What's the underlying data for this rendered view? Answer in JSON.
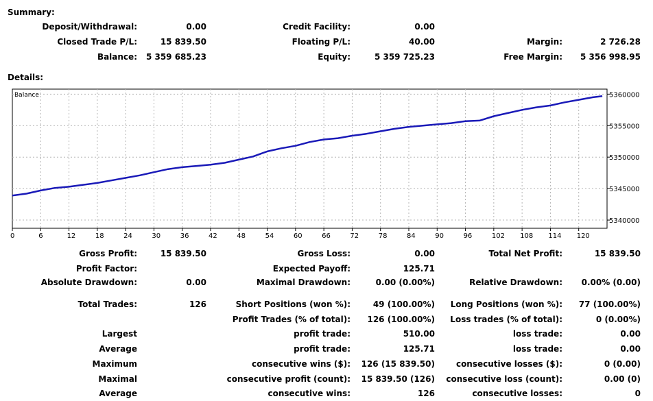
{
  "summary": {
    "heading": "Summary:",
    "deposit_label": "Deposit/Withdrawal:",
    "deposit_value": "0.00",
    "credit_label": "Credit Facility:",
    "credit_value": "0.00",
    "closed_pl_label": "Closed Trade P/L:",
    "closed_pl_value": "15 839.50",
    "floating_pl_label": "Floating P/L:",
    "floating_pl_value": "40.00",
    "margin_label": "Margin:",
    "margin_value": "2 726.28",
    "balance_label": "Balance:",
    "balance_value": "5 359 685.23",
    "equity_label": "Equity:",
    "equity_value": "5 359 725.23",
    "free_margin_label": "Free Margin:",
    "free_margin_value": "5 356 998.95"
  },
  "details": {
    "heading": "Details:",
    "rows": [
      [
        "Gross Profit:",
        "15 839.50",
        "Gross Loss:",
        "0.00",
        "Total Net Profit:",
        "15 839.50"
      ],
      [
        "Profit Factor:",
        "",
        "Expected Payoff:",
        "125.71",
        "",
        ""
      ],
      [
        "Absolute Drawdown:",
        "0.00",
        "Maximal Drawdown:",
        "0.00 (0.00%)",
        "Relative Drawdown:",
        "0.00% (0.00)"
      ],
      [
        "Total Trades:",
        "126",
        "Short Positions (won %):",
        "49 (100.00%)",
        "Long Positions (won %):",
        "77 (100.00%)"
      ],
      [
        "",
        "",
        "Profit Trades (% of total):",
        "126 (100.00%)",
        "Loss trades (% of total):",
        "0 (0.00%)"
      ],
      [
        "Largest",
        "",
        "profit trade:",
        "510.00",
        "loss trade:",
        "0.00"
      ],
      [
        "Average",
        "",
        "profit trade:",
        "125.71",
        "loss trade:",
        "0.00"
      ],
      [
        "Maximum",
        "",
        "consecutive wins ($):",
        "126 (15 839.50)",
        "consecutive losses ($):",
        "0 (0.00)"
      ],
      [
        "Maximal",
        "",
        "consecutive profit (count):",
        "15 839.50 (126)",
        "consecutive loss (count):",
        "0.00 (0)"
      ],
      [
        "Average",
        "",
        "consecutive wins:",
        "126",
        "consecutive losses:",
        "0"
      ]
    ]
  },
  "chart_data": {
    "type": "line",
    "series": [
      {
        "name": "Balance",
        "x": [
          0,
          3,
          6,
          9,
          12,
          15,
          18,
          21,
          24,
          27,
          30,
          33,
          36,
          39,
          42,
          45,
          48,
          51,
          54,
          57,
          60,
          63,
          66,
          69,
          72,
          75,
          78,
          81,
          84,
          87,
          90,
          93,
          96,
          99,
          102,
          105,
          108,
          111,
          114,
          117,
          120,
          123,
          125
        ],
        "values": [
          5343900,
          5344200,
          5344700,
          5345100,
          5345300,
          5345600,
          5345900,
          5346300,
          5346700,
          5347100,
          5347600,
          5348100,
          5348400,
          5348600,
          5348800,
          5349100,
          5349600,
          5350100,
          5350900,
          5351400,
          5351800,
          5352400,
          5352800,
          5353000,
          5353400,
          5353700,
          5354100,
          5354500,
          5354800,
          5355000,
          5355200,
          5355400,
          5355700,
          5355800,
          5356500,
          5357000,
          5357500,
          5357900,
          5358200,
          5358700,
          5359100,
          5359500,
          5359685
        ]
      }
    ],
    "xticks": [
      0,
      6,
      12,
      18,
      24,
      30,
      36,
      42,
      48,
      54,
      60,
      66,
      72,
      78,
      84,
      90,
      96,
      102,
      108,
      114,
      120
    ],
    "yticks": [
      5340000,
      5345000,
      5350000,
      5355000,
      5360000
    ],
    "xlim": [
      0,
      126
    ],
    "ylim": [
      5338700,
      5360800
    ],
    "grid": true,
    "line_color": "#1a1ab8",
    "grid_color": "#b4b4b4"
  }
}
